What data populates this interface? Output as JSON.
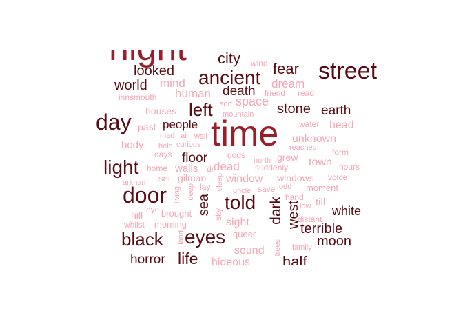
{
  "colors": {
    "dark": "#5a0c14",
    "mid": "#9a1e2a",
    "light": "#f4a6b5"
  },
  "words": [
    {
      "t": "night",
      "c": "c2"
    },
    {
      "t": "city",
      "c": "c1"
    },
    {
      "t": "wind",
      "c": "c3"
    },
    {
      "t": "street",
      "c": "c1"
    },
    {
      "t": "fear",
      "c": "c1"
    },
    {
      "t": "looked",
      "c": "c1"
    },
    {
      "t": "ancient",
      "c": "c1"
    },
    {
      "t": "world",
      "c": "c1"
    },
    {
      "t": "mind",
      "c": "c3"
    },
    {
      "t": "dream",
      "c": "c3"
    },
    {
      "t": "death",
      "c": "c1"
    },
    {
      "t": "human",
      "c": "c3"
    },
    {
      "t": "friend",
      "c": "c3"
    },
    {
      "t": "read",
      "c": "c3"
    },
    {
      "t": "innsmouth",
      "c": "c3"
    },
    {
      "t": "sort",
      "c": "c3"
    },
    {
      "t": "space",
      "c": "c3"
    },
    {
      "t": "stone",
      "c": "c1"
    },
    {
      "t": "earth",
      "c": "c1"
    },
    {
      "t": "left",
      "c": "c1"
    },
    {
      "t": "houses",
      "c": "c3"
    },
    {
      "t": "mountain",
      "c": "c3"
    },
    {
      "t": "day",
      "c": "c1"
    },
    {
      "t": "time",
      "c": "c2"
    },
    {
      "t": "people",
      "c": "c1"
    },
    {
      "t": "past",
      "c": "c3"
    },
    {
      "t": "water",
      "c": "c3"
    },
    {
      "t": "head",
      "c": "c3"
    },
    {
      "t": "mad",
      "c": "c3"
    },
    {
      "t": "air",
      "c": "c3"
    },
    {
      "t": "wall",
      "c": "c3"
    },
    {
      "t": "unknown",
      "c": "c3"
    },
    {
      "t": "body",
      "c": "c3"
    },
    {
      "t": "held",
      "c": "c3"
    },
    {
      "t": "curious",
      "c": "c3"
    },
    {
      "t": "reached",
      "c": "c3"
    },
    {
      "t": "form",
      "c": "c3"
    },
    {
      "t": "days",
      "c": "c3"
    },
    {
      "t": "floor",
      "c": "c1"
    },
    {
      "t": "gods",
      "c": "c3"
    },
    {
      "t": "north",
      "c": "c3"
    },
    {
      "t": "grew",
      "c": "c3"
    },
    {
      "t": "town",
      "c": "c3"
    },
    {
      "t": "light",
      "c": "c1"
    },
    {
      "t": "home",
      "c": "c3"
    },
    {
      "t": "walls",
      "c": "c3"
    },
    {
      "t": "dr",
      "c": "c3"
    },
    {
      "t": "dead",
      "c": "c3"
    },
    {
      "t": "suddenly",
      "c": "c3"
    },
    {
      "t": "hours",
      "c": "c3"
    },
    {
      "t": "set",
      "c": "c3"
    },
    {
      "t": "gilman",
      "c": "c3"
    },
    {
      "t": "window",
      "c": "c3"
    },
    {
      "t": "windows",
      "c": "c3"
    },
    {
      "t": "voice",
      "c": "c3"
    },
    {
      "t": "arkham",
      "c": "c3"
    },
    {
      "t": "lay",
      "c": "c3"
    },
    {
      "t": "sleep",
      "c": "c3"
    },
    {
      "t": "uncle",
      "c": "c3"
    },
    {
      "t": "save",
      "c": "c3"
    },
    {
      "t": "odd",
      "c": "c3"
    },
    {
      "t": "moment",
      "c": "c3"
    },
    {
      "t": "door",
      "c": "c1"
    },
    {
      "t": "living",
      "c": "c3"
    },
    {
      "t": "deep",
      "c": "c3"
    },
    {
      "t": "sea",
      "c": "c1"
    },
    {
      "t": "told",
      "c": "c1"
    },
    {
      "t": "dark",
      "c": "c1"
    },
    {
      "t": "hand",
      "c": "c3"
    },
    {
      "t": "till",
      "c": "c3"
    },
    {
      "t": "low",
      "c": "c3"
    },
    {
      "t": "white",
      "c": "c1"
    },
    {
      "t": "hill",
      "c": "c3"
    },
    {
      "t": "eye",
      "c": "c3"
    },
    {
      "t": "brought",
      "c": "c3"
    },
    {
      "t": "west",
      "c": "c1"
    },
    {
      "t": "distant",
      "c": "c3"
    },
    {
      "t": "whilst",
      "c": "c3"
    },
    {
      "t": "morning",
      "c": "c3"
    },
    {
      "t": "sky",
      "c": "c3"
    },
    {
      "t": "sight",
      "c": "c3"
    },
    {
      "t": "terrible",
      "c": "c1"
    },
    {
      "t": "black",
      "c": "c1"
    },
    {
      "t": "land",
      "c": "c3"
    },
    {
      "t": "eyes",
      "c": "c1"
    },
    {
      "t": "queer",
      "c": "c3"
    },
    {
      "t": "moon",
      "c": "c1"
    },
    {
      "t": "sound",
      "c": "c3"
    },
    {
      "t": "trees",
      "c": "c3"
    },
    {
      "t": "family",
      "c": "c3"
    },
    {
      "t": "horror",
      "c": "c1"
    },
    {
      "t": "life",
      "c": "c1"
    },
    {
      "t": "hideous",
      "c": "c3"
    },
    {
      "t": "half",
      "c": "c1"
    }
  ]
}
